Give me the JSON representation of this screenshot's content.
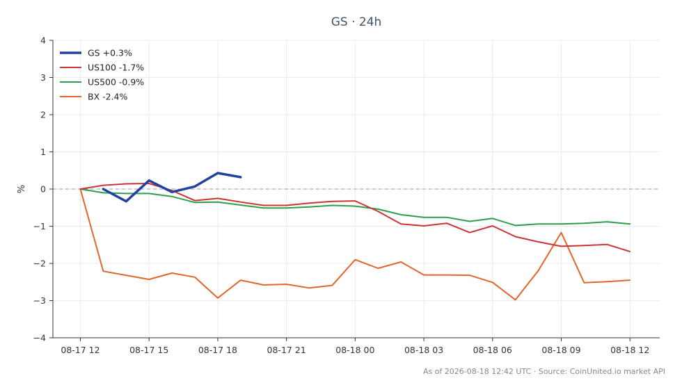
{
  "chart_data": {
    "type": "line",
    "title": "GS · 24h",
    "ylabel": "%",
    "xlabel": "",
    "ylim": [
      -4,
      4
    ],
    "yticks": [
      -4,
      -3,
      -2,
      -1,
      0,
      1,
      2,
      3,
      4
    ],
    "x_index_range": [
      -1.2,
      25.3
    ],
    "xtick_positions": [
      0,
      3,
      6,
      9,
      12,
      15,
      18,
      21,
      24
    ],
    "xtick_labels": [
      "08-17 12",
      "08-17 15",
      "08-17 18",
      "08-17 21",
      "08-18 00",
      "08-18 03",
      "08-18 06",
      "08-18 09",
      "08-18 12"
    ],
    "zero_line": true,
    "grid": true,
    "legend_position": "top-left",
    "series": [
      {
        "name": "GS +0.3%",
        "color": "#2541a0",
        "width": 3.5,
        "x": [
          1,
          2,
          3,
          4,
          5,
          6,
          7
        ],
        "values": [
          0.0,
          -0.33,
          0.23,
          -0.08,
          0.07,
          0.43,
          0.32
        ]
      },
      {
        "name": "US100 -1.7%",
        "color": "#cc3333",
        "width": 2,
        "x": [
          0,
          1,
          2,
          3,
          4,
          5,
          6,
          7,
          8,
          9,
          10,
          11,
          12,
          13,
          14,
          15,
          16,
          17,
          18,
          19,
          20,
          21,
          22,
          23,
          24
        ],
        "values": [
          0.0,
          0.1,
          0.14,
          0.15,
          -0.04,
          -0.31,
          -0.25,
          -0.35,
          -0.44,
          -0.44,
          -0.38,
          -0.33,
          -0.32,
          -0.6,
          -0.94,
          -0.99,
          -0.92,
          -1.17,
          -0.99,
          -1.28,
          -1.42,
          -1.54,
          -1.52,
          -1.49,
          -1.68
        ]
      },
      {
        "name": "US500 -0.9%",
        "color": "#2e9e4a",
        "width": 2,
        "x": [
          0,
          1,
          2,
          3,
          4,
          5,
          6,
          7,
          8,
          9,
          10,
          11,
          12,
          13,
          14,
          15,
          16,
          17,
          18,
          19,
          20,
          21,
          22,
          23,
          24
        ],
        "values": [
          0.0,
          -0.1,
          -0.12,
          -0.12,
          -0.2,
          -0.36,
          -0.35,
          -0.43,
          -0.51,
          -0.51,
          -0.48,
          -0.44,
          -0.46,
          -0.54,
          -0.69,
          -0.76,
          -0.76,
          -0.87,
          -0.79,
          -0.98,
          -0.94,
          -0.94,
          -0.92,
          -0.88,
          -0.94
        ]
      },
      {
        "name": "BX -2.4%",
        "color": "#e0662a",
        "width": 2,
        "x": [
          0,
          1,
          2,
          3,
          4,
          5,
          6,
          7,
          8,
          9,
          10,
          11,
          12,
          13,
          14,
          15,
          16,
          17,
          18,
          19,
          20,
          21,
          22,
          23,
          24
        ],
        "values": [
          0.0,
          -2.21,
          -2.32,
          -2.43,
          -2.26,
          -2.37,
          -2.93,
          -2.45,
          -2.58,
          -2.56,
          -2.66,
          -2.59,
          -1.9,
          -2.13,
          -1.96,
          -2.31,
          -2.31,
          -2.32,
          -2.51,
          -2.98,
          -2.19,
          -1.17,
          -2.52,
          -2.49,
          -2.45
        ]
      }
    ]
  },
  "footer": "As of 2026-08-18 12:42 UTC · Source: CoinUnited.io market API"
}
